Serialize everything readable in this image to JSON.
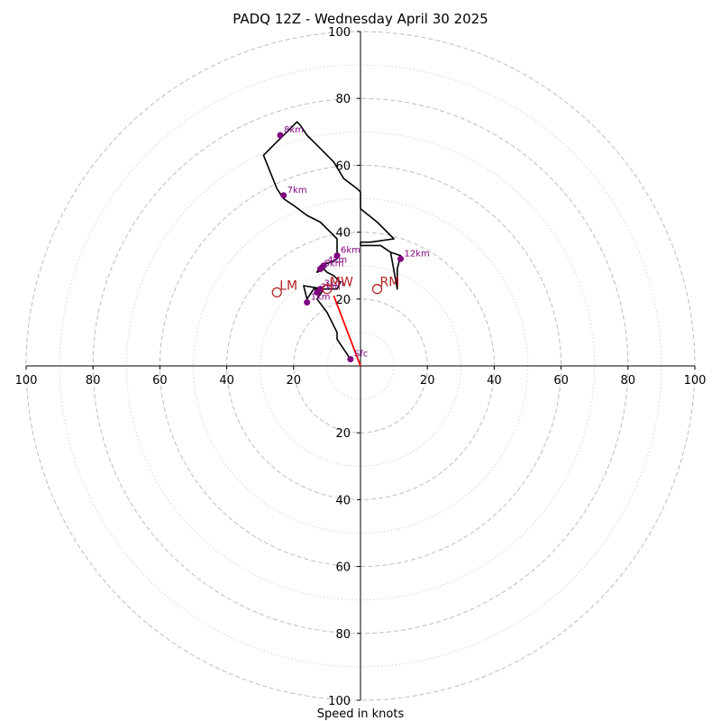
{
  "chart_data": {
    "type": "hodograph",
    "title": "PADQ 12Z - Wednesday April 30 2025",
    "xlabel": "Speed in knots",
    "range": [
      -100,
      100
    ],
    "ring_major_step": 20,
    "ring_minor_step": 10,
    "x_ticks": [
      {
        "value": -100,
        "label": "100"
      },
      {
        "value": -80,
        "label": "80"
      },
      {
        "value": -60,
        "label": "60"
      },
      {
        "value": -40,
        "label": "40"
      },
      {
        "value": -20,
        "label": "20"
      },
      {
        "value": 20,
        "label": "20"
      },
      {
        "value": 40,
        "label": "40"
      },
      {
        "value": 60,
        "label": "60"
      },
      {
        "value": 80,
        "label": "80"
      },
      {
        "value": 100,
        "label": "100"
      }
    ],
    "y_ticks": [
      {
        "value": 100,
        "label": "100"
      },
      {
        "value": 80,
        "label": "80"
      },
      {
        "value": 60,
        "label": "60"
      },
      {
        "value": 40,
        "label": "40"
      },
      {
        "value": 20,
        "label": "20"
      },
      {
        "value": -20,
        "label": "20"
      },
      {
        "value": -40,
        "label": "40"
      },
      {
        "value": -60,
        "label": "60"
      },
      {
        "value": -80,
        "label": "80"
      },
      {
        "value": -100,
        "label": "100"
      }
    ],
    "hodograph_line": [
      [
        -3,
        2
      ],
      [
        -7,
        8
      ],
      [
        -7,
        10
      ],
      [
        -10,
        16
      ],
      [
        -13,
        20
      ],
      [
        -11,
        23
      ],
      [
        -17,
        24
      ],
      [
        -16,
        20
      ],
      [
        -14,
        23
      ],
      [
        -12,
        23
      ],
      [
        -7,
        23
      ],
      [
        -6,
        25
      ],
      [
        -8,
        27
      ],
      [
        -10,
        28
      ],
      [
        -11,
        29
      ],
      [
        -13,
        28
      ],
      [
        -12,
        30
      ],
      [
        -9,
        31
      ],
      [
        -7,
        32
      ],
      [
        -7,
        35
      ],
      [
        -7,
        37
      ],
      [
        -7,
        38
      ],
      [
        -9,
        40
      ],
      [
        -12,
        43
      ],
      [
        -16,
        45
      ],
      [
        -20,
        48
      ],
      [
        -23,
        50
      ],
      [
        -25,
        53
      ],
      [
        -27,
        58
      ],
      [
        -29,
        63
      ],
      [
        -28,
        64
      ],
      [
        -26,
        66
      ],
      [
        -24,
        68
      ],
      [
        -22,
        70
      ],
      [
        -20,
        72
      ],
      [
        -19,
        73
      ],
      [
        -18,
        72
      ],
      [
        -16,
        69
      ],
      [
        -14,
        67
      ],
      [
        -12,
        65
      ],
      [
        -8,
        61
      ],
      [
        -5,
        56
      ],
      [
        -1,
        53
      ],
      [
        0,
        52
      ],
      [
        0,
        47
      ],
      [
        5,
        43
      ],
      [
        10,
        38
      ],
      [
        3,
        37
      ],
      [
        0,
        37
      ],
      [
        0,
        36
      ],
      [
        3,
        36
      ],
      [
        6,
        36
      ],
      [
        9,
        34
      ],
      [
        12,
        33
      ],
      [
        11,
        29
      ],
      [
        11,
        25
      ],
      [
        11,
        23
      ],
      [
        9,
        34
      ]
    ],
    "height_markers": [
      {
        "label": "Sfc",
        "u": -3,
        "v": 2
      },
      {
        "label": "1km",
        "u": -16,
        "v": 19
      },
      {
        "label": "2km",
        "u": -13,
        "v": 22
      },
      {
        "label": "3km",
        "u": -12,
        "v": 23
      },
      {
        "label": "4km",
        "u": -11,
        "v": 30
      },
      {
        "label": "5km",
        "u": -12,
        "v": 29
      },
      {
        "label": "6km",
        "u": -7,
        "v": 33
      },
      {
        "label": "7km",
        "u": -23,
        "v": 51
      },
      {
        "label": "8km",
        "u": -24,
        "v": 69
      },
      {
        "label": "12km",
        "u": 12,
        "v": 32
      }
    ],
    "storm_motions": [
      {
        "label": "LM",
        "u": -25,
        "v": 22
      },
      {
        "label": "RM",
        "u": 5,
        "v": 23
      },
      {
        "label": "MW",
        "u": -10,
        "v": 23
      }
    ],
    "shear_vector": {
      "from": [
        0,
        0
      ],
      "to": [
        -8,
        21
      ],
      "color": "#ff0000"
    },
    "colors": {
      "hodograph": "#000000",
      "height_marker": "#800080",
      "storm_motion": "#b22222",
      "ring_major": "#bdbdbd",
      "ring_minor": "#d4d4d4"
    }
  }
}
